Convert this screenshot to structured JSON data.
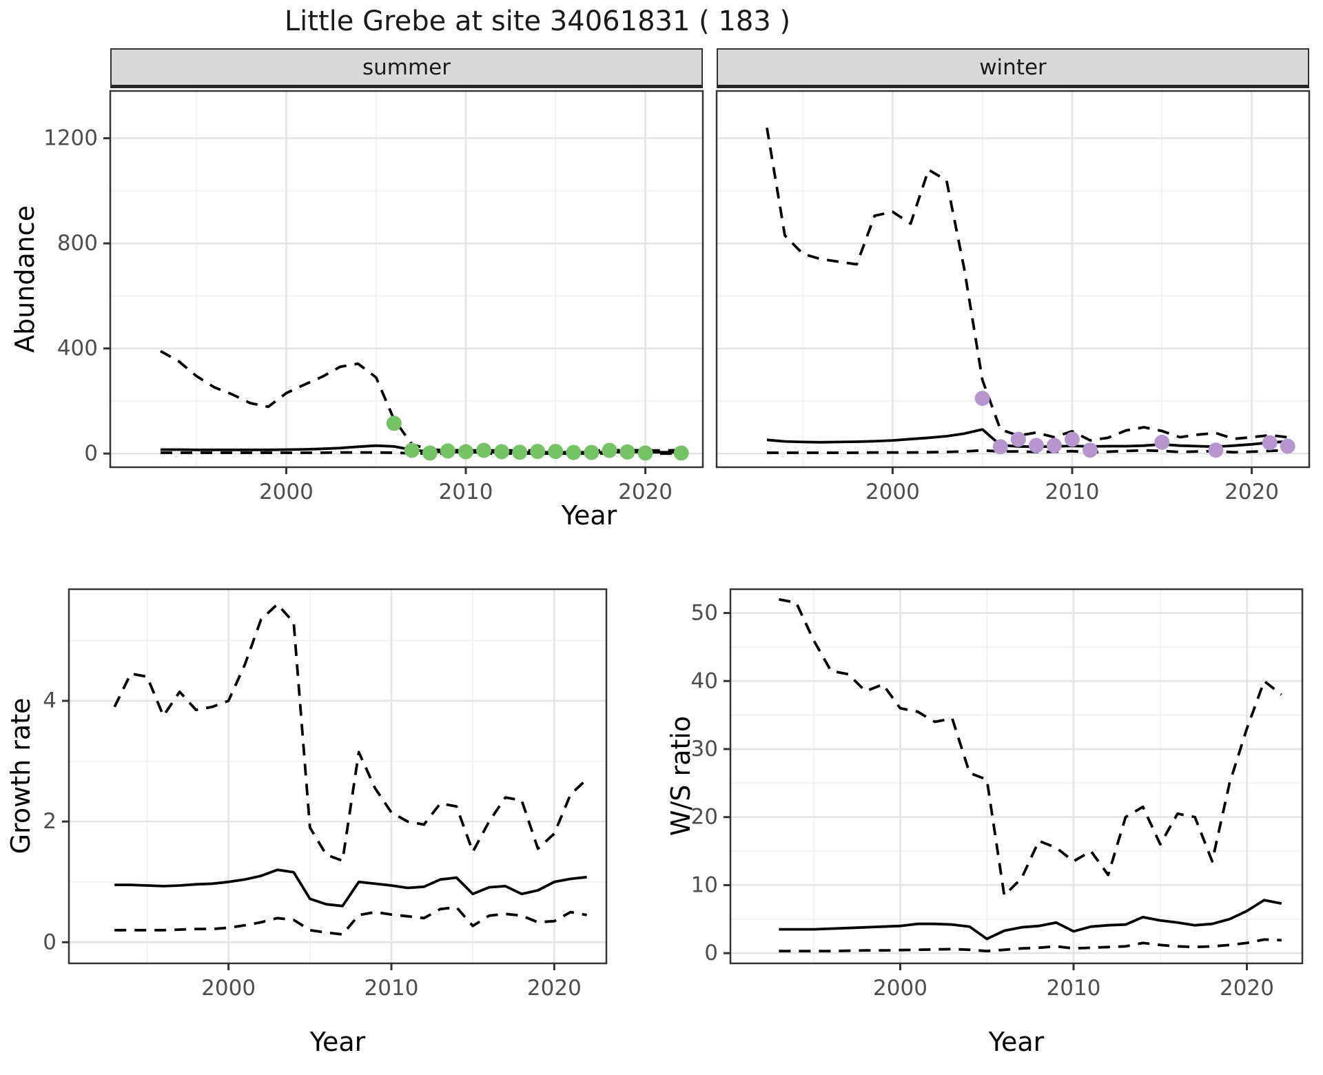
{
  "title": "Little Grebe at site 34061831 ( 183 )",
  "colors": {
    "summer_point": "#74c365",
    "winter_point": "#b795ce",
    "line": "#000000",
    "grid_major": "#e4e4e4",
    "grid_minor": "#f1f1f1",
    "panel_border": "#333333",
    "strip_bg": "#d9d9d9",
    "tick_label": "#4d4d4d"
  },
  "top_figure": {
    "facets": [
      {
        "label": "summer"
      },
      {
        "label": "winter"
      }
    ],
    "ylabel": "Abundance",
    "xlabel": "Year"
  },
  "bottom_left": {
    "ylabel": "Growth rate",
    "xlabel": "Year"
  },
  "bottom_right": {
    "ylabel": "W/S ratio",
    "xlabel": "Year"
  },
  "chart_data": [
    {
      "id": "abundance_summer",
      "type": "line",
      "facet_label": "summer",
      "xlabel": "Year",
      "ylabel": "Abundance",
      "x_range": [
        1990.2,
        2023.2
      ],
      "y_range": [
        -52,
        1380
      ],
      "x_ticks": [
        2000,
        2010,
        2020
      ],
      "x_minor": [
        1995,
        2005,
        2015
      ],
      "y_ticks": [
        0,
        400,
        800,
        1200
      ],
      "y_minor": [
        200,
        600,
        1000
      ],
      "grid": true,
      "years": [
        1993,
        1994,
        1995,
        1996,
        1997,
        1998,
        1999,
        2000,
        2001,
        2002,
        2003,
        2004,
        2005,
        2006,
        2007,
        2008,
        2009,
        2010,
        2011,
        2012,
        2013,
        2014,
        2015,
        2016,
        2017,
        2018,
        2019,
        2020,
        2021,
        2022
      ],
      "series": [
        {
          "name": "upper_ci",
          "style": "dashed",
          "values": [
            390,
            352,
            295,
            252,
            225,
            192,
            178,
            230,
            262,
            292,
            330,
            342,
            290,
            130,
            35,
            15,
            13,
            12,
            12,
            12,
            12,
            12,
            12,
            12,
            12,
            12,
            13,
            12,
            12,
            13
          ]
        },
        {
          "name": "mean",
          "style": "solid",
          "values": [
            15,
            15,
            14,
            14,
            14,
            14,
            14,
            15,
            16,
            18,
            21,
            26,
            30,
            27,
            14,
            7,
            6,
            5,
            5,
            5,
            5,
            5,
            5,
            5,
            5,
            5,
            6,
            5,
            5,
            5
          ]
        },
        {
          "name": "lower_ci",
          "style": "dashed",
          "values": [
            3,
            3,
            3,
            3,
            3,
            3,
            3,
            3,
            3,
            3,
            4,
            4,
            4,
            3,
            1,
            0,
            0,
            0,
            0,
            0,
            0,
            0,
            0,
            0,
            0,
            0,
            0,
            0,
            0,
            0
          ]
        }
      ],
      "points": {
        "name": "observed_counts",
        "color_key": "summer_point",
        "x": [
          2006,
          2007,
          2008,
          2009,
          2010,
          2011,
          2012,
          2013,
          2014,
          2015,
          2016,
          2017,
          2018,
          2019,
          2020,
          2022
        ],
        "y": [
          115,
          12,
          2,
          10,
          7,
          12,
          7,
          5,
          8,
          8,
          4,
          4,
          12,
          6,
          2,
          2
        ]
      }
    },
    {
      "id": "abundance_winter",
      "type": "line",
      "facet_label": "winter",
      "xlabel": "Year",
      "ylabel": "Abundance",
      "x_range": [
        1990.2,
        2023.2
      ],
      "y_range": [
        -52,
        1380
      ],
      "x_ticks": [
        2000,
        2010,
        2020
      ],
      "x_minor": [
        1995,
        2005,
        2015
      ],
      "y_ticks": [
        0,
        400,
        800,
        1200
      ],
      "y_minor": [
        200,
        600,
        1000
      ],
      "grid": true,
      "years": [
        1993,
        1994,
        1995,
        1996,
        1997,
        1998,
        1999,
        2000,
        2001,
        2002,
        2003,
        2004,
        2005,
        2006,
        2007,
        2008,
        2009,
        2010,
        2011,
        2012,
        2013,
        2014,
        2015,
        2016,
        2017,
        2018,
        2019,
        2020,
        2021,
        2022
      ],
      "series": [
        {
          "name": "upper_ci",
          "style": "dashed",
          "values": [
            1240,
            830,
            760,
            740,
            730,
            720,
            905,
            920,
            875,
            1080,
            1040,
            700,
            280,
            92,
            68,
            80,
            62,
            85,
            50,
            60,
            88,
            100,
            86,
            62,
            72,
            78,
            56,
            62,
            70,
            62
          ]
        },
        {
          "name": "mean",
          "style": "solid",
          "values": [
            52,
            46,
            44,
            43,
            44,
            45,
            47,
            50,
            55,
            60,
            66,
            76,
            92,
            32,
            27,
            26,
            27,
            29,
            27,
            28,
            28,
            30,
            35,
            30,
            28,
            26,
            30,
            35,
            42,
            46
          ]
        },
        {
          "name": "lower_ci",
          "style": "dashed",
          "values": [
            3,
            3,
            3,
            3,
            3,
            3,
            4,
            4,
            4,
            5,
            6,
            8,
            12,
            8,
            8,
            6,
            7,
            9,
            5,
            7,
            10,
            12,
            10,
            6,
            8,
            9,
            5,
            7,
            10,
            13
          ]
        }
      ],
      "points": {
        "name": "observed_counts",
        "color_key": "winter_point",
        "x": [
          2005,
          2006,
          2007,
          2008,
          2009,
          2010,
          2011,
          2015,
          2018,
          2021,
          2022
        ],
        "y": [
          210,
          26,
          54,
          31,
          31,
          54,
          13,
          43,
          13,
          41,
          28
        ]
      }
    },
    {
      "id": "growth_rate",
      "type": "line",
      "xlabel": "Year",
      "ylabel": "Growth rate",
      "x_range": [
        1990.2,
        2023.2
      ],
      "y_range": [
        -0.35,
        5.85
      ],
      "x_ticks": [
        2000,
        2010,
        2020
      ],
      "x_minor": [
        1995,
        2005,
        2015
      ],
      "y_ticks": [
        0,
        2,
        4
      ],
      "y_minor": [
        1,
        3,
        5
      ],
      "grid": true,
      "years": [
        1993,
        1994,
        1995,
        1996,
        1997,
        1998,
        1999,
        2000,
        2001,
        2002,
        2003,
        2004,
        2005,
        2006,
        2007,
        2008,
        2009,
        2010,
        2011,
        2012,
        2013,
        2014,
        2015,
        2016,
        2017,
        2018,
        2019,
        2020,
        2021,
        2022
      ],
      "series": [
        {
          "name": "upper_ci",
          "style": "dashed",
          "values": [
            3.9,
            4.45,
            4.4,
            3.75,
            4.15,
            3.85,
            3.9,
            4.0,
            4.6,
            5.35,
            5.6,
            5.3,
            1.9,
            1.45,
            1.35,
            3.15,
            2.55,
            2.15,
            2.0,
            1.95,
            2.3,
            2.25,
            1.5,
            2.0,
            2.4,
            2.35,
            1.55,
            1.8,
            2.45,
            2.7
          ]
        },
        {
          "name": "mean",
          "style": "solid",
          "values": [
            0.95,
            0.95,
            0.94,
            0.93,
            0.94,
            0.96,
            0.97,
            1.0,
            1.04,
            1.1,
            1.2,
            1.16,
            0.72,
            0.63,
            0.6,
            1.0,
            0.97,
            0.94,
            0.9,
            0.92,
            1.04,
            1.07,
            0.8,
            0.91,
            0.93,
            0.8,
            0.86,
            1.0,
            1.05,
            1.08
          ]
        },
        {
          "name": "lower_ci",
          "style": "dashed",
          "values": [
            0.2,
            0.2,
            0.2,
            0.2,
            0.21,
            0.22,
            0.22,
            0.24,
            0.28,
            0.33,
            0.4,
            0.37,
            0.2,
            0.16,
            0.13,
            0.45,
            0.5,
            0.46,
            0.43,
            0.4,
            0.55,
            0.58,
            0.27,
            0.44,
            0.47,
            0.44,
            0.33,
            0.35,
            0.5,
            0.45
          ]
        }
      ]
    },
    {
      "id": "ws_ratio",
      "type": "line",
      "xlabel": "Year",
      "ylabel": "W/S ratio",
      "x_range": [
        1990.2,
        2023.2
      ],
      "y_range": [
        -1.5,
        53.5
      ],
      "x_ticks": [
        2000,
        2010,
        2020
      ],
      "x_minor": [
        1995,
        2005,
        2015
      ],
      "y_ticks": [
        0,
        10,
        20,
        30,
        40,
        50
      ],
      "y_minor": [
        5,
        15,
        25,
        35,
        45
      ],
      "grid": true,
      "years": [
        1993,
        1994,
        1995,
        1996,
        1997,
        1998,
        1999,
        2000,
        2001,
        2002,
        2003,
        2004,
        2005,
        2006,
        2007,
        2008,
        2009,
        2010,
        2011,
        2012,
        2013,
        2014,
        2015,
        2016,
        2017,
        2018,
        2019,
        2020,
        2021,
        2022
      ],
      "series": [
        {
          "name": "upper_ci",
          "style": "dashed",
          "values": [
            52,
            51.5,
            46,
            41.5,
            41,
            38.5,
            39.5,
            36,
            35.5,
            34,
            34.5,
            26.5,
            25.5,
            8.5,
            11,
            16.5,
            15.5,
            13.5,
            15,
            11.5,
            20,
            21.5,
            16,
            20.5,
            20,
            13.5,
            25,
            33,
            40,
            38
          ]
        },
        {
          "name": "mean",
          "style": "solid",
          "values": [
            3.5,
            3.5,
            3.5,
            3.6,
            3.7,
            3.8,
            3.9,
            4.0,
            4.3,
            4.3,
            4.2,
            3.9,
            2.1,
            3.3,
            3.8,
            4.0,
            4.5,
            3.2,
            3.9,
            4.1,
            4.2,
            5.3,
            4.8,
            4.5,
            4.1,
            4.3,
            5.0,
            6.2,
            7.8,
            7.3
          ]
        },
        {
          "name": "lower_ci",
          "style": "dashed",
          "values": [
            0.3,
            0.3,
            0.3,
            0.3,
            0.35,
            0.4,
            0.4,
            0.45,
            0.5,
            0.55,
            0.6,
            0.5,
            0.3,
            0.5,
            0.7,
            0.8,
            1.0,
            0.7,
            0.8,
            0.9,
            1.0,
            1.5,
            1.2,
            1.0,
            0.9,
            1.0,
            1.2,
            1.5,
            2.0,
            1.9
          ]
        }
      ]
    }
  ]
}
